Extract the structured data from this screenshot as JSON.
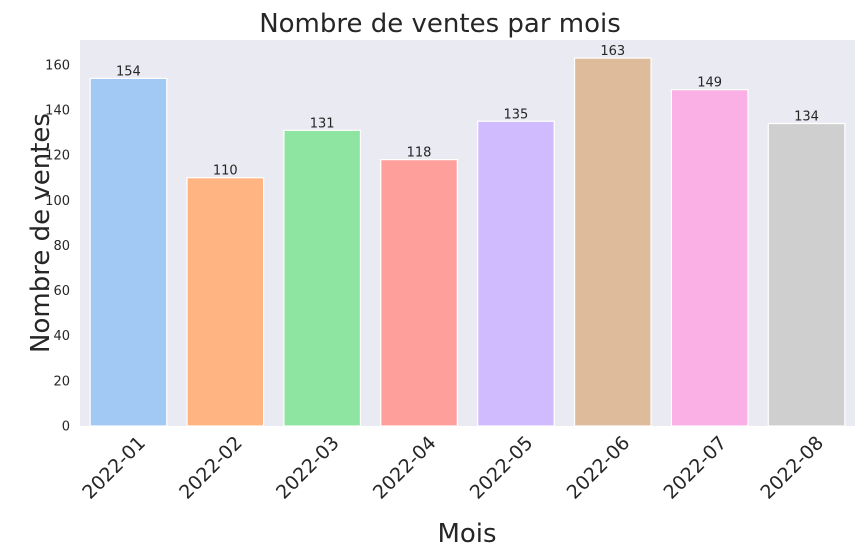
{
  "chart_data": {
    "type": "bar",
    "title": "Nombre de ventes par mois",
    "xlabel": "Mois",
    "ylabel": "Nombre de ventes",
    "categories": [
      "2022-01",
      "2022-02",
      "2022-03",
      "2022-04",
      "2022-05",
      "2022-06",
      "2022-07",
      "2022-08"
    ],
    "values": [
      154,
      110,
      131,
      118,
      135,
      163,
      149,
      134
    ],
    "colors": [
      "#a1c9f4",
      "#ffb482",
      "#8de5a1",
      "#ff9f9b",
      "#d0bbff",
      "#debb9b",
      "#fab0e4",
      "#cfcfcf"
    ],
    "ylim": [
      0,
      171
    ],
    "yticks": [
      0,
      20,
      40,
      60,
      80,
      100,
      120,
      140,
      160
    ],
    "background": "#eaeaf2",
    "grid": false,
    "legend": "none"
  }
}
